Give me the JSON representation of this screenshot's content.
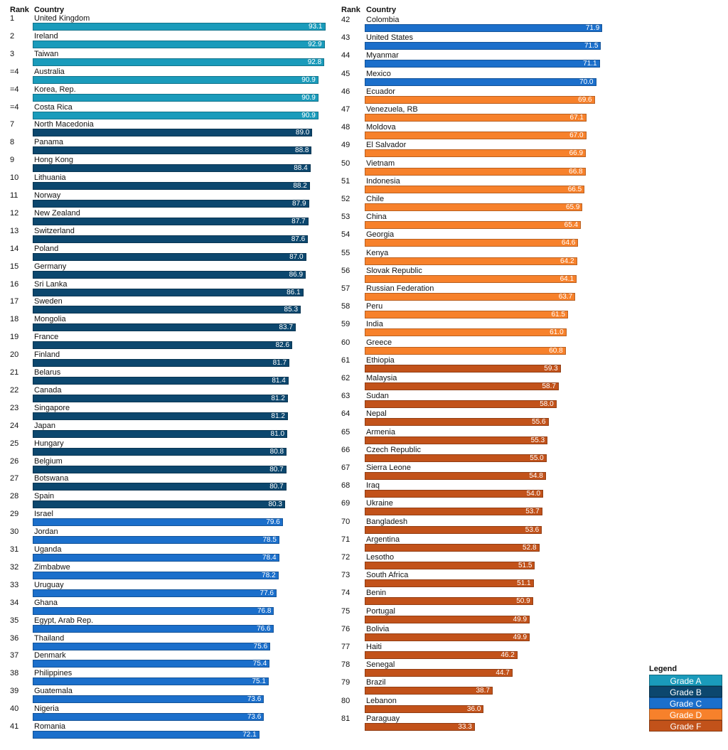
{
  "headers": {
    "rank": "Rank",
    "country": "Country"
  },
  "legend": {
    "title": "Legend",
    "items": [
      {
        "grade": "A",
        "label": "Grade A",
        "color": "#1a9bbb"
      },
      {
        "grade": "B",
        "label": "Grade B",
        "color": "#0c476e"
      },
      {
        "grade": "C",
        "label": "Grade C",
        "color": "#1b6fcb"
      },
      {
        "grade": "D",
        "label": "Grade D",
        "color": "#f7812b"
      },
      {
        "grade": "F",
        "label": "Grade F",
        "color": "#c2521a"
      }
    ]
  },
  "chart_data": {
    "type": "bar",
    "orientation": "horizontal",
    "xlim": [
      0,
      100
    ],
    "rows": [
      {
        "rank": "1",
        "country": "United Kingdom",
        "value": 93.1,
        "grade": "A"
      },
      {
        "rank": "2",
        "country": "Ireland",
        "value": 92.9,
        "grade": "A"
      },
      {
        "rank": "3",
        "country": "Taiwan",
        "value": 92.8,
        "grade": "A"
      },
      {
        "rank": "=4",
        "country": "Australia",
        "value": 90.9,
        "grade": "A"
      },
      {
        "rank": "=4",
        "country": "Korea, Rep.",
        "value": 90.9,
        "grade": "A"
      },
      {
        "rank": "=4",
        "country": "Costa Rica",
        "value": 90.9,
        "grade": "A"
      },
      {
        "rank": "7",
        "country": "North Macedonia",
        "value": 89.0,
        "grade": "B"
      },
      {
        "rank": "8",
        "country": "Panama",
        "value": 88.8,
        "grade": "B"
      },
      {
        "rank": "9",
        "country": "Hong Kong",
        "value": 88.4,
        "grade": "B"
      },
      {
        "rank": "10",
        "country": "Lithuania",
        "value": 88.2,
        "grade": "B"
      },
      {
        "rank": "11",
        "country": "Norway",
        "value": 87.9,
        "grade": "B"
      },
      {
        "rank": "12",
        "country": "New Zealand",
        "value": 87.7,
        "grade": "B"
      },
      {
        "rank": "13",
        "country": "Switzerland",
        "value": 87.6,
        "grade": "B"
      },
      {
        "rank": "14",
        "country": "Poland",
        "value": 87.0,
        "grade": "B"
      },
      {
        "rank": "15",
        "country": "Germany",
        "value": 86.9,
        "grade": "B"
      },
      {
        "rank": "16",
        "country": "Sri Lanka",
        "value": 86.1,
        "grade": "B"
      },
      {
        "rank": "17",
        "country": "Sweden",
        "value": 85.3,
        "grade": "B"
      },
      {
        "rank": "18",
        "country": "Mongolia",
        "value": 83.7,
        "grade": "B"
      },
      {
        "rank": "19",
        "country": "France",
        "value": 82.6,
        "grade": "B"
      },
      {
        "rank": "20",
        "country": "Finland",
        "value": 81.7,
        "grade": "B"
      },
      {
        "rank": "21",
        "country": "Belarus",
        "value": 81.4,
        "grade": "B"
      },
      {
        "rank": "22",
        "country": "Canada",
        "value": 81.2,
        "grade": "B"
      },
      {
        "rank": "23",
        "country": "Singapore",
        "value": 81.2,
        "grade": "B"
      },
      {
        "rank": "24",
        "country": "Japan",
        "value": 81.0,
        "grade": "B"
      },
      {
        "rank": "25",
        "country": "Hungary",
        "value": 80.8,
        "grade": "B"
      },
      {
        "rank": "26",
        "country": "Belgium",
        "value": 80.7,
        "grade": "B"
      },
      {
        "rank": "27",
        "country": "Botswana",
        "value": 80.7,
        "grade": "B"
      },
      {
        "rank": "28",
        "country": "Spain",
        "value": 80.3,
        "grade": "B"
      },
      {
        "rank": "29",
        "country": "Israel",
        "value": 79.6,
        "grade": "C"
      },
      {
        "rank": "30",
        "country": "Jordan",
        "value": 78.5,
        "grade": "C"
      },
      {
        "rank": "31",
        "country": "Uganda",
        "value": 78.4,
        "grade": "C"
      },
      {
        "rank": "32",
        "country": "Zimbabwe",
        "value": 78.2,
        "grade": "C"
      },
      {
        "rank": "33",
        "country": "Uruguay",
        "value": 77.6,
        "grade": "C"
      },
      {
        "rank": "34",
        "country": "Ghana",
        "value": 76.8,
        "grade": "C"
      },
      {
        "rank": "35",
        "country": "Egypt, Arab Rep.",
        "value": 76.6,
        "grade": "C"
      },
      {
        "rank": "36",
        "country": "Thailand",
        "value": 75.6,
        "grade": "C"
      },
      {
        "rank": "37",
        "country": "Denmark",
        "value": 75.4,
        "grade": "C"
      },
      {
        "rank": "38",
        "country": "Philippines",
        "value": 75.1,
        "grade": "C"
      },
      {
        "rank": "39",
        "country": "Guatemala",
        "value": 73.6,
        "grade": "C"
      },
      {
        "rank": "40",
        "country": "Nigeria",
        "value": 73.6,
        "grade": "C"
      },
      {
        "rank": "41",
        "country": "Romania",
        "value": 72.1,
        "grade": "C"
      },
      {
        "rank": "42",
        "country": "Colombia",
        "value": 71.9,
        "grade": "C"
      },
      {
        "rank": "43",
        "country": "United States",
        "value": 71.5,
        "grade": "C"
      },
      {
        "rank": "44",
        "country": "Myanmar",
        "value": 71.1,
        "grade": "C"
      },
      {
        "rank": "45",
        "country": "Mexico",
        "value": 70.0,
        "grade": "C"
      },
      {
        "rank": "46",
        "country": "Ecuador",
        "value": 69.6,
        "grade": "D"
      },
      {
        "rank": "47",
        "country": "Venezuela, RB",
        "value": 67.1,
        "grade": "D"
      },
      {
        "rank": "48",
        "country": "Moldova",
        "value": 67.0,
        "grade": "D"
      },
      {
        "rank": "49",
        "country": "El Salvador",
        "value": 66.9,
        "grade": "D"
      },
      {
        "rank": "50",
        "country": "Vietnam",
        "value": 66.8,
        "grade": "D"
      },
      {
        "rank": "51",
        "country": "Indonesia",
        "value": 66.5,
        "grade": "D"
      },
      {
        "rank": "52",
        "country": "Chile",
        "value": 65.9,
        "grade": "D"
      },
      {
        "rank": "53",
        "country": "China",
        "value": 65.4,
        "grade": "D"
      },
      {
        "rank": "54",
        "country": "Georgia",
        "value": 64.6,
        "grade": "D"
      },
      {
        "rank": "55",
        "country": "Kenya",
        "value": 64.2,
        "grade": "D"
      },
      {
        "rank": "56",
        "country": "Slovak Republic",
        "value": 64.1,
        "grade": "D"
      },
      {
        "rank": "57",
        "country": "Russian Federation",
        "value": 63.7,
        "grade": "D"
      },
      {
        "rank": "58",
        "country": "Peru",
        "value": 61.5,
        "grade": "D"
      },
      {
        "rank": "59",
        "country": "India",
        "value": 61.0,
        "grade": "D"
      },
      {
        "rank": "60",
        "country": "Greece",
        "value": 60.8,
        "grade": "D"
      },
      {
        "rank": "61",
        "country": "Ethiopia",
        "value": 59.3,
        "grade": "F"
      },
      {
        "rank": "62",
        "country": "Malaysia",
        "value": 58.7,
        "grade": "F"
      },
      {
        "rank": "63",
        "country": "Sudan",
        "value": 58.0,
        "grade": "F"
      },
      {
        "rank": "64",
        "country": "Nepal",
        "value": 55.6,
        "grade": "F"
      },
      {
        "rank": "65",
        "country": "Armenia",
        "value": 55.3,
        "grade": "F"
      },
      {
        "rank": "66",
        "country": "Czech Republic",
        "value": 55.0,
        "grade": "F"
      },
      {
        "rank": "67",
        "country": "Sierra Leone",
        "value": 54.8,
        "grade": "F"
      },
      {
        "rank": "68",
        "country": "Iraq",
        "value": 54.0,
        "grade": "F"
      },
      {
        "rank": "69",
        "country": "Ukraine",
        "value": 53.7,
        "grade": "F"
      },
      {
        "rank": "70",
        "country": "Bangladesh",
        "value": 53.6,
        "grade": "F"
      },
      {
        "rank": "71",
        "country": "Argentina",
        "value": 52.8,
        "grade": "F"
      },
      {
        "rank": "72",
        "country": "Lesotho",
        "value": 51.5,
        "grade": "F"
      },
      {
        "rank": "73",
        "country": "South Africa",
        "value": 51.1,
        "grade": "F"
      },
      {
        "rank": "74",
        "country": "Benin",
        "value": 50.9,
        "grade": "F"
      },
      {
        "rank": "75",
        "country": "Portugal",
        "value": 49.9,
        "grade": "F"
      },
      {
        "rank": "76",
        "country": "Bolivia",
        "value": 49.9,
        "grade": "F"
      },
      {
        "rank": "77",
        "country": "Haiti",
        "value": 46.2,
        "grade": "F"
      },
      {
        "rank": "78",
        "country": "Senegal",
        "value": 44.7,
        "grade": "F"
      },
      {
        "rank": "79",
        "country": "Brazil",
        "value": 38.7,
        "grade": "F"
      },
      {
        "rank": "80",
        "country": "Lebanon",
        "value": 36.0,
        "grade": "F"
      },
      {
        "rank": "81",
        "country": "Paraguay",
        "value": 33.3,
        "grade": "F"
      }
    ]
  }
}
